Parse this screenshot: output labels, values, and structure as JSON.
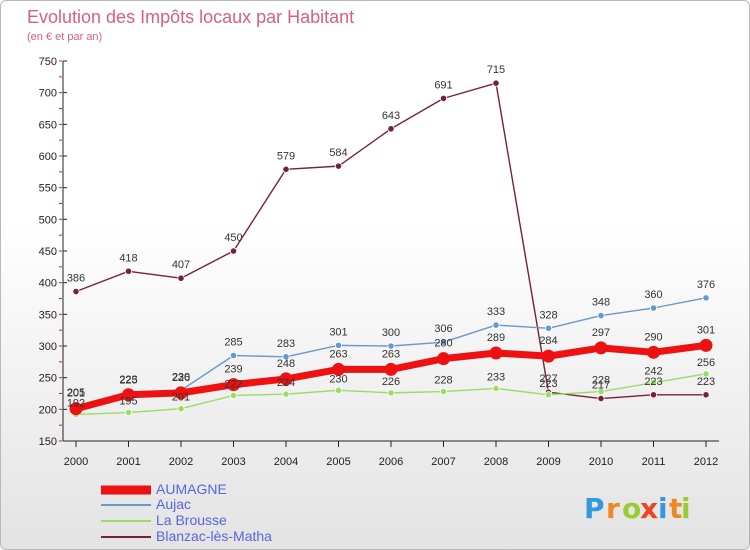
{
  "chart_data": {
    "type": "line",
    "title": "Evolution des Impôts locaux par Habitant",
    "subtitle": "(en € et par an)",
    "x": [
      "2000",
      "2001",
      "2002",
      "2003",
      "2004",
      "2005",
      "2006",
      "2007",
      "2008",
      "2009",
      "2010",
      "2011",
      "2012"
    ],
    "ylim": [
      150,
      750
    ],
    "yticks": [
      150,
      200,
      250,
      300,
      350,
      400,
      450,
      500,
      550,
      600,
      650,
      700,
      750
    ],
    "series": [
      {
        "name": "AUMAGNE",
        "color": "#ee1111",
        "values": [
          201,
          223,
          226,
          239,
          248,
          263,
          263,
          280,
          289,
          284,
          297,
          290,
          301
        ]
      },
      {
        "name": "Aujac",
        "color": "#6699cc",
        "values": [
          205,
          225,
          230,
          285,
          283,
          301,
          300,
          306,
          333,
          328,
          348,
          360,
          376
        ]
      },
      {
        "name": "La Brousse",
        "color": "#99dd66",
        "values": [
          192,
          195,
          201,
          222,
          224,
          230,
          226,
          228,
          233,
          223,
          228,
          242,
          256
        ]
      },
      {
        "name": "Blanzac-lès-Matha",
        "color": "#772233",
        "values": [
          386,
          418,
          407,
          450,
          579,
          584,
          643,
          691,
          715,
          227,
          217,
          223,
          223
        ]
      }
    ]
  },
  "brand": {
    "letters": [
      "P",
      "r",
      "o",
      "x",
      "i",
      "t",
      "i"
    ],
    "colors": [
      "#3399dd",
      "#ee8822",
      "#99cc33",
      "#ee4422",
      "#3399dd",
      "#ee8822",
      "#99cc33"
    ]
  }
}
